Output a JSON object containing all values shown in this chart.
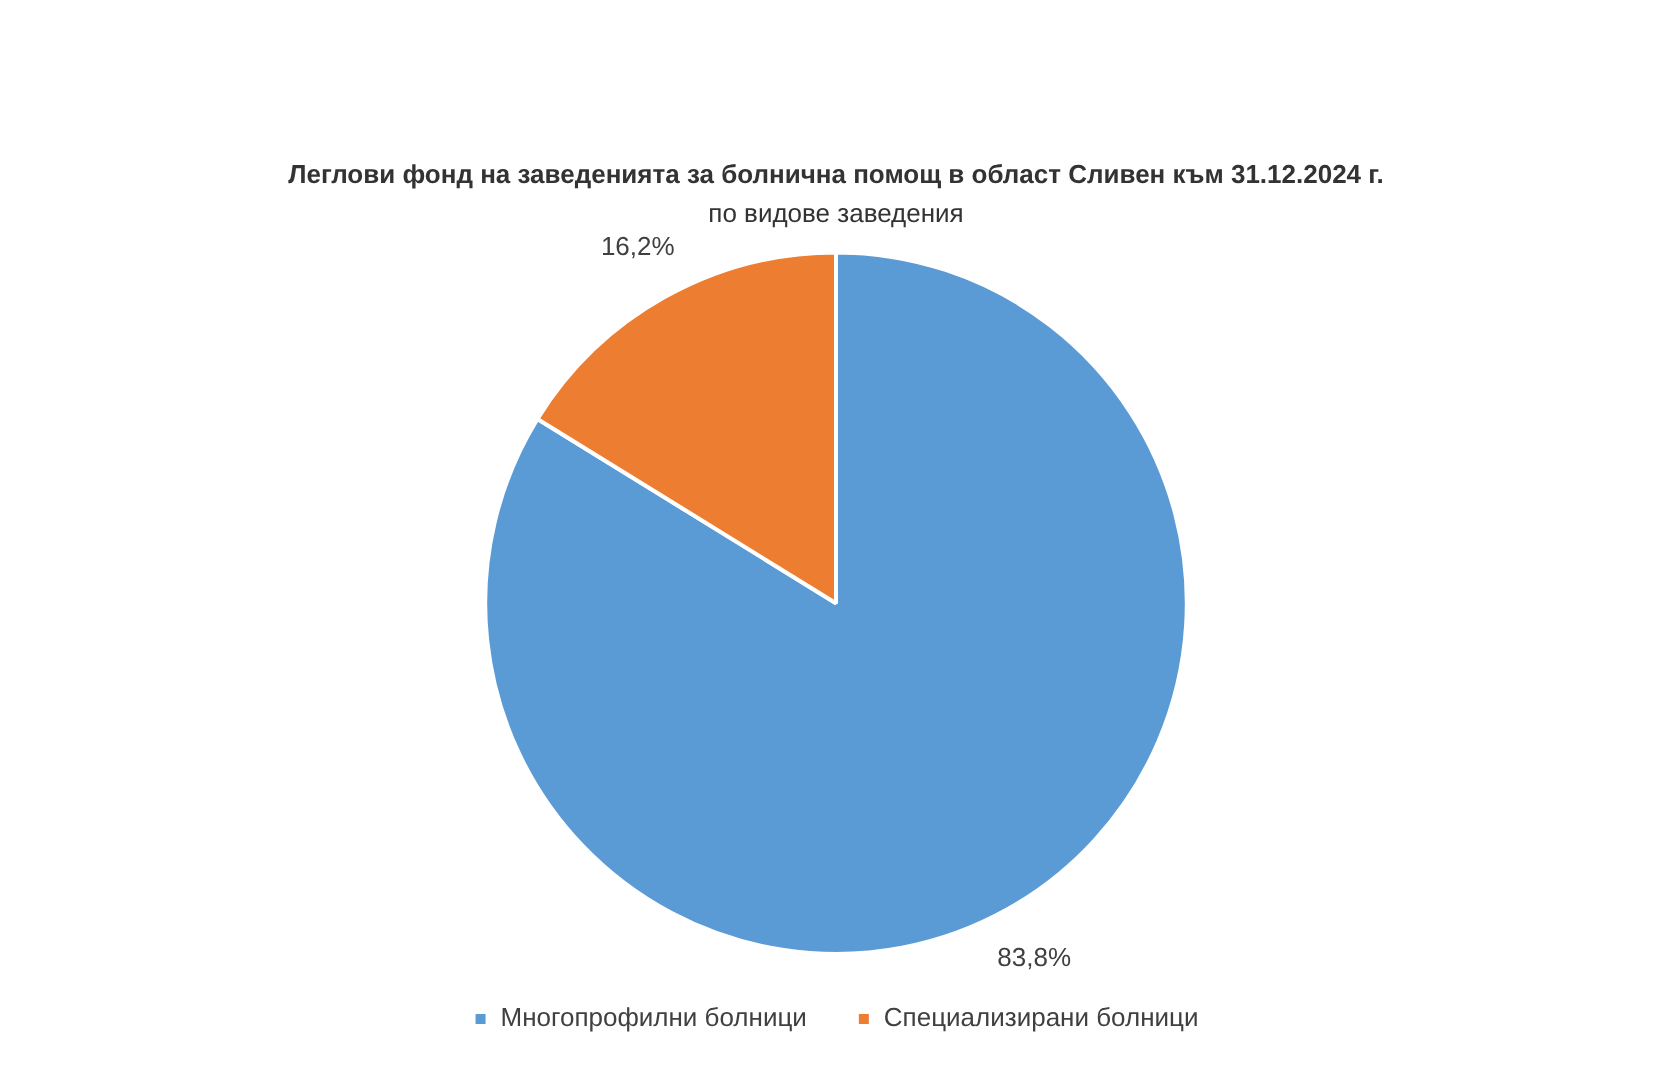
{
  "chart_data": {
    "type": "pie",
    "title": "Леглови фонд на заведенията за болнична помощ в област Сливен към 31.12.2024 г.",
    "subtitle": "по видове заведения",
    "categories": [
      "Многопрофилни болници",
      "Специализирани болници"
    ],
    "values": [
      83.8,
      16.2
    ],
    "colors": [
      "#5b9bd5",
      "#ed7d31"
    ],
    "value_labels": [
      "83,8%",
      "16,2%"
    ],
    "legend": "bottom"
  }
}
